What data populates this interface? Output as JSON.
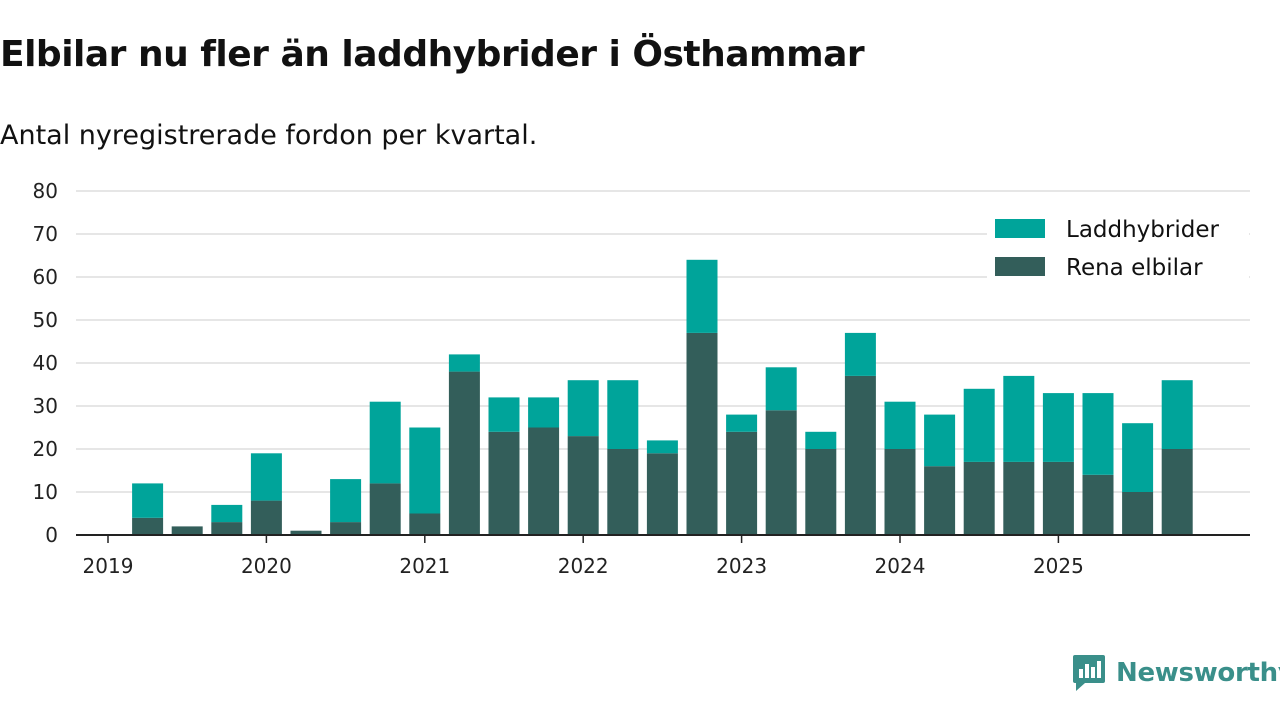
{
  "chart_data": {
    "type": "bar",
    "stacked": true,
    "title": "Elbilar nu fler än laddhybrider i Östhammar",
    "subtitle": "Antal nyregistrerade fordon per kvartal.",
    "xlabel": "",
    "ylabel": "",
    "ylim": [
      0,
      80
    ],
    "y_ticks": [
      0,
      10,
      20,
      30,
      40,
      50,
      60,
      70,
      80
    ],
    "x_tick_labels": [
      "2019",
      "2020",
      "2021",
      "2022",
      "2023",
      "2024",
      "2025"
    ],
    "categories": [
      "2019 Q2",
      "2019 Q3",
      "2019 Q4",
      "2020 Q1",
      "2020 Q2",
      "2020 Q3",
      "2020 Q4",
      "2021 Q1",
      "2021 Q2",
      "2021 Q3",
      "2021 Q4",
      "2022 Q1",
      "2022 Q2",
      "2022 Q3",
      "2022 Q4",
      "2023 Q1",
      "2023 Q2",
      "2023 Q3",
      "2023 Q4",
      "2024 Q1",
      "2024 Q2",
      "2024 Q3",
      "2024 Q4",
      "2025 Q1",
      "2025 Q2",
      "2025 Q3",
      "2025 Q4"
    ],
    "series": [
      {
        "name": "Rena elbilar",
        "color": "#335e5a",
        "values": [
          4,
          2,
          3,
          8,
          1,
          3,
          12,
          5,
          38,
          24,
          25,
          23,
          20,
          19,
          47,
          24,
          29,
          20,
          37,
          20,
          16,
          17,
          17,
          17,
          14,
          10,
          20
        ]
      },
      {
        "name": "Laddhybrider",
        "color": "#00a49a",
        "values": [
          8,
          0,
          4,
          11,
          0,
          10,
          19,
          20,
          4,
          8,
          7,
          13,
          16,
          3,
          17,
          4,
          10,
          4,
          10,
          11,
          12,
          17,
          20,
          16,
          19,
          16,
          16
        ]
      }
    ],
    "legend": {
      "position": "top-right",
      "items": [
        "Laddhybrider",
        "Rena elbilar"
      ]
    },
    "grid": true
  },
  "brand": {
    "name": "Newsworthy",
    "logo_icon": "newsworthy-logo-icon",
    "color": "#3a8f8a"
  }
}
